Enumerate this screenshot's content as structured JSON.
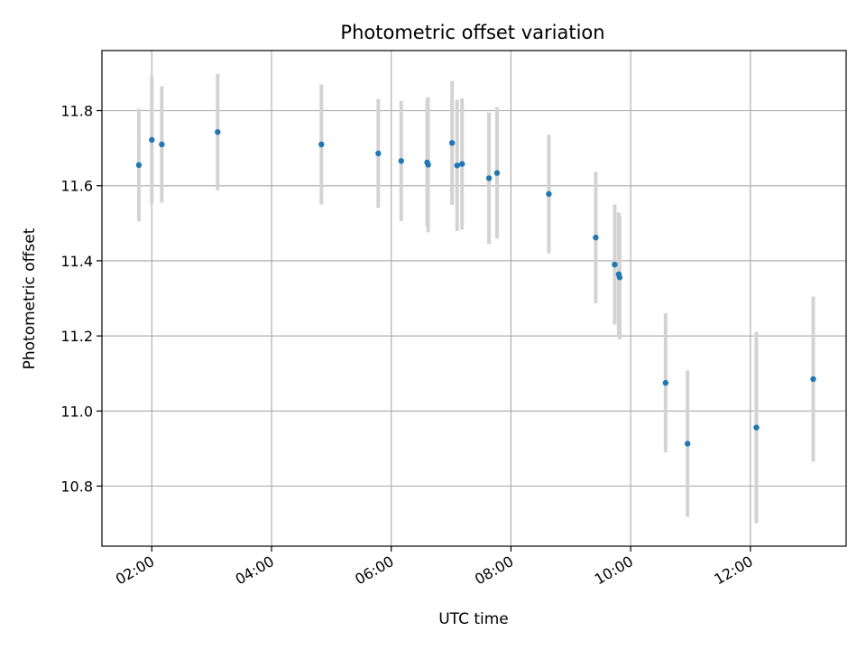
{
  "chart_data": {
    "type": "scatter",
    "title": "Photometric offset variation",
    "xlabel": "UTC time",
    "ylabel": "Photometric offset",
    "x_unit": "time (HH:MM)",
    "xlim": [
      "01:10",
      "13:36"
    ],
    "ylim": [
      10.64,
      11.96
    ],
    "x_ticks": [
      "02:00",
      "04:00",
      "06:00",
      "08:00",
      "10:00",
      "12:00"
    ],
    "y_ticks": [
      10.8,
      11.0,
      11.2,
      11.4,
      11.6,
      11.8
    ],
    "grid": true,
    "marker_color": "#1f77b4",
    "errorbar_color": "#d3d3d3",
    "series": [
      {
        "points": [
          {
            "t": "01:47",
            "y": 11.655,
            "err": 0.15
          },
          {
            "t": "02:00",
            "y": 11.722,
            "err": 0.17
          },
          {
            "t": "02:10",
            "y": 11.71,
            "err": 0.155
          },
          {
            "t": "03:06",
            "y": 11.743,
            "err": 0.155
          },
          {
            "t": "04:50",
            "y": 11.71,
            "err": 0.16
          },
          {
            "t": "05:47",
            "y": 11.686,
            "err": 0.145
          },
          {
            "t": "06:10",
            "y": 11.666,
            "err": 0.16
          },
          {
            "t": "06:36",
            "y": 11.662,
            "err": 0.17
          },
          {
            "t": "06:37",
            "y": 11.656,
            "err": 0.18
          },
          {
            "t": "07:01",
            "y": 11.714,
            "err": 0.165
          },
          {
            "t": "07:06",
            "y": 11.654,
            "err": 0.175
          },
          {
            "t": "07:11",
            "y": 11.658,
            "err": 0.175
          },
          {
            "t": "07:38",
            "y": 11.62,
            "err": 0.175
          },
          {
            "t": "07:46",
            "y": 11.634,
            "err": 0.175
          },
          {
            "t": "08:38",
            "y": 11.578,
            "err": 0.158
          },
          {
            "t": "09:25",
            "y": 11.462,
            "err": 0.175
          },
          {
            "t": "09:44",
            "y": 11.39,
            "err": 0.16
          },
          {
            "t": "09:48",
            "y": 11.364,
            "err": 0.165
          },
          {
            "t": "09:49",
            "y": 11.356,
            "err": 0.165
          },
          {
            "t": "10:35",
            "y": 11.075,
            "err": 0.185
          },
          {
            "t": "10:57",
            "y": 10.913,
            "err": 0.195
          },
          {
            "t": "12:06",
            "y": 10.956,
            "err": 0.255
          },
          {
            "t": "13:03",
            "y": 11.085,
            "err": 0.22
          }
        ]
      }
    ]
  }
}
